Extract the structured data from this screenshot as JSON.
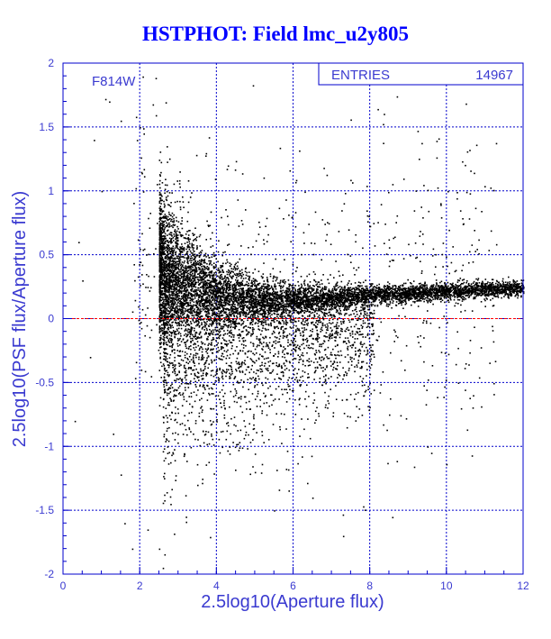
{
  "title": "HSTPHOT: Field lmc_u2y805",
  "colors": {
    "title": "#0000ff",
    "axis": "#0000cc",
    "label": "#3a3ad0",
    "grid": "#0000cc",
    "points": "#000000",
    "reference_line": "#ff0000"
  },
  "chart_data": {
    "type": "scatter",
    "xlabel": "2.5log10(Aperture flux)",
    "ylabel": "2.5log10(PSF flux/Aperture flux)",
    "xlim": [
      0,
      12
    ],
    "ylim": [
      -2,
      2
    ],
    "xticks": [
      0,
      2,
      4,
      6,
      8,
      10,
      12
    ],
    "yticks": [
      -2,
      -1.5,
      -1,
      -0.5,
      0,
      0.5,
      1,
      1.5,
      2
    ],
    "grid": true,
    "filter_label": "F814W",
    "stats_box": {
      "label": "ENTRIES",
      "value": "14967"
    },
    "reference_line_y": 0,
    "trend": [
      {
        "x": 2.6,
        "y": 0.4
      },
      {
        "x": 3.2,
        "y": 0.3
      },
      {
        "x": 4.0,
        "y": 0.18
      },
      {
        "x": 5.0,
        "y": 0.15
      },
      {
        "x": 6.0,
        "y": 0.15
      },
      {
        "x": 7.0,
        "y": 0.17
      },
      {
        "x": 8.0,
        "y": 0.19
      },
      {
        "x": 9.0,
        "y": 0.2
      },
      {
        "x": 10.0,
        "y": 0.22
      },
      {
        "x": 11.0,
        "y": 0.23
      },
      {
        "x": 12.0,
        "y": 0.24
      }
    ],
    "points": [
      {
        "x": 0.5,
        "y": 0.3
      },
      {
        "x": 0.8,
        "y": 1.4
      },
      {
        "x": 1.1,
        "y": 1.72
      },
      {
        "x": 1.2,
        "y": 1.7
      },
      {
        "x": 1.5,
        "y": 1.55
      },
      {
        "x": 2.0,
        "y": 1.5
      },
      {
        "x": 1.9,
        "y": 1.58
      },
      {
        "x": 0.3,
        "y": -0.8
      },
      {
        "x": 1.0,
        "y": 1.0
      },
      {
        "x": 1.5,
        "y": -1.22
      },
      {
        "x": 1.6,
        "y": -1.6
      },
      {
        "x": 1.8,
        "y": -1.8
      },
      {
        "x": 2.2,
        "y": -1.65
      },
      {
        "x": 2.5,
        "y": -1.8
      },
      {
        "x": 2.6,
        "y": -1.95
      },
      {
        "x": 2.8,
        "y": -1.45
      },
      {
        "x": 3.2,
        "y": -1.55
      },
      {
        "x": 3.5,
        "y": -1.3
      },
      {
        "x": 3.8,
        "y": 1.42
      },
      {
        "x": 2.7,
        "y": 1.35
      },
      {
        "x": 2.1,
        "y": 1.45
      },
      {
        "x": 0.4,
        "y": 0.6
      },
      {
        "x": 0.7,
        "y": -0.3
      },
      {
        "x": 1.3,
        "y": -0.9
      },
      {
        "x": 6.5,
        "y": -1.4
      },
      {
        "x": 7.3,
        "y": -1.7
      },
      {
        "x": 9.5,
        "y": -1.0
      },
      {
        "x": 9.6,
        "y": -1.05
      },
      {
        "x": 10.3,
        "y": -0.5
      },
      {
        "x": 10.6,
        "y": -0.62
      },
      {
        "x": 11.0,
        "y": 0.1
      },
      {
        "x": 11.6,
        "y": 0.33
      },
      {
        "x": 12.0,
        "y": 0.25
      },
      {
        "x": 5.0,
        "y": -1.2
      },
      {
        "x": 5.5,
        "y": -1.5
      },
      {
        "x": 8.5,
        "y": -0.75
      }
    ]
  }
}
